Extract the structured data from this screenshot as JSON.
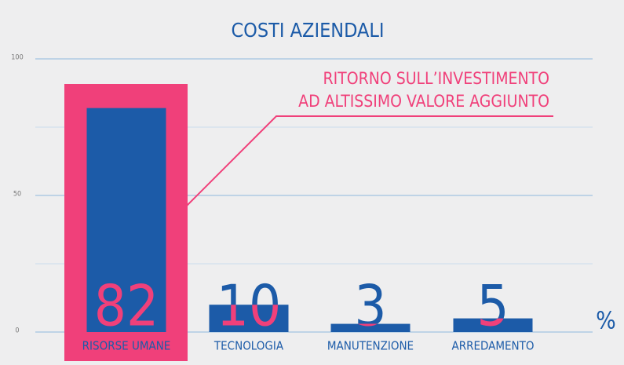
{
  "chart_data": {
    "type": "bar",
    "title": "COSTI AZIENDALI",
    "categories": [
      "RISORSE UMANE",
      "TECNOLOGIA",
      "MANUTENZIONE",
      "ARREDAMENTO"
    ],
    "values": [
      82,
      10,
      3,
      5
    ],
    "color": "#1c5ba8",
    "label_color": "#f0407a",
    "highlight_index": 0,
    "highlight_color": "#f0407a",
    "ylim": [
      0,
      100
    ],
    "yticks": [
      0,
      50,
      100
    ],
    "minor_gridlines": [
      25,
      75
    ],
    "grid": true,
    "unit": "%",
    "annotation": [
      "RITORNO SULL’INVESTIMENTO",
      "AD ALTISSIMO VALORE AGGIUNTO"
    ]
  }
}
